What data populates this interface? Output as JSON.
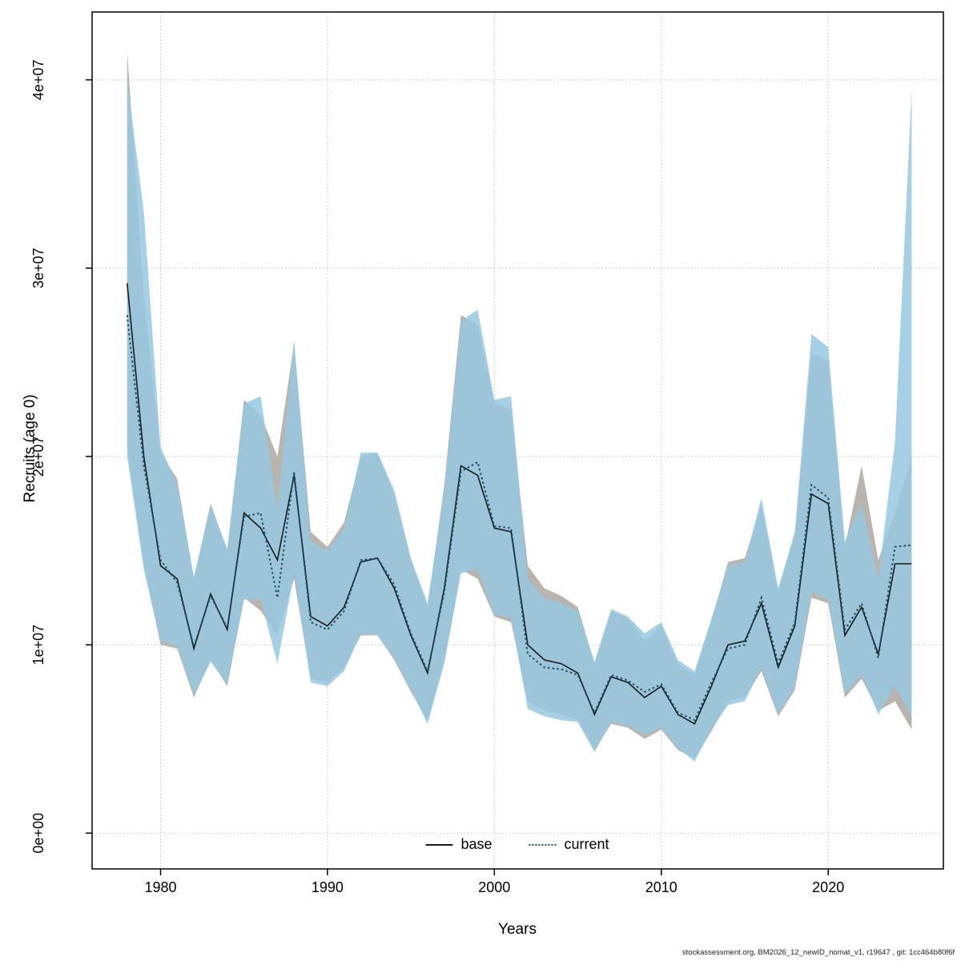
{
  "figure": {
    "y_label": "Recruits (age 0)",
    "x_label": "Years",
    "footer": "stockassessment.org, BM2026_12_newID_nomat_v1, r19647 , git: 1cc464b80f6f",
    "legend": {
      "base_label": "base",
      "current_label": "current"
    },
    "colors": {
      "base_line": "#1a1a1a",
      "current_line": "#16506e",
      "base_band": "#b9b4ad",
      "current_band": "#97c8e2",
      "grid": "#bdbdbd",
      "box": "#000000"
    }
  },
  "chart_data": {
    "type": "line",
    "title": "",
    "xlabel": "Years",
    "ylabel": "Recruits (age 0)",
    "grid": true,
    "legend_position": "bottom-center",
    "xlim": [
      1975.9,
      2026.9
    ],
    "ylim": [
      -1900000,
      43600000
    ],
    "x_ticks": [
      1980,
      1990,
      2000,
      2010,
      2020
    ],
    "x_tick_labels": [
      "1980",
      "1990",
      "2000",
      "2010",
      "2020"
    ],
    "y_ticks": [
      0,
      10000000,
      20000000,
      30000000,
      40000000
    ],
    "y_tick_labels": [
      "0e+00",
      "1e+07",
      "2e+07",
      "3e+07",
      "4e+07"
    ],
    "x": [
      1978,
      1979,
      1980,
      1981,
      1982,
      1983,
      1984,
      1985,
      1986,
      1987,
      1988,
      1989,
      1990,
      1991,
      1992,
      1993,
      1994,
      1995,
      1996,
      1997,
      1998,
      1999,
      2000,
      2001,
      2002,
      2003,
      2004,
      2005,
      2006,
      2007,
      2008,
      2009,
      2010,
      2011,
      2012,
      2013,
      2014,
      2015,
      2016,
      2017,
      2018,
      2019,
      2020,
      2021,
      2022,
      2023,
      2024,
      2025
    ],
    "series": [
      {
        "name": "base",
        "style": "solid",
        "color": "#1a1a1a",
        "band_color": "#b9b4ad",
        "band_opacity": 1.0,
        "mean": [
          29200000.0,
          20000000.0,
          14200000.0,
          13500000.0,
          9800000.0,
          12700000.0,
          10800000.0,
          17000000.0,
          16200000.0,
          14500000.0,
          19000000.0,
          11500000.0,
          11000000.0,
          12000000.0,
          14400000.0,
          14600000.0,
          13000000.0,
          10500000.0,
          8500000.0,
          13000000.0,
          19500000.0,
          19000000.0,
          16200000.0,
          16000000.0,
          10000000.0,
          9200000.0,
          9000000.0,
          8500000.0,
          6300000.0,
          8300000.0,
          8000000.0,
          7200000.0,
          7800000.0,
          6300000.0,
          5800000.0,
          7800000.0,
          10000000.0,
          10200000.0,
          12200000.0,
          8800000.0,
          11000000.0,
          18000000.0,
          17500000.0,
          10500000.0,
          12000000.0,
          9500000.0,
          14300000.0,
          14300000.0
        ],
        "lo": [
          20500000.0,
          14200000.0,
          10000000.0,
          9800000.0,
          7200000.0,
          9200000.0,
          7800000.0,
          12500000.0,
          11800000.0,
          10500000.0,
          13500000.0,
          8200000.0,
          8000000.0,
          8800000.0,
          10500000.0,
          10500000.0,
          9200000.0,
          7500000.0,
          6000000.0,
          9200000.0,
          14000000.0,
          13500000.0,
          11500000.0,
          11200000.0,
          7000000.0,
          6500000.0,
          6300000.0,
          6000000.0,
          4400000.0,
          5800000.0,
          5600000.0,
          5000000.0,
          5500000.0,
          4400000.0,
          4000000.0,
          5400000.0,
          7000000.0,
          7200000.0,
          8600000.0,
          6200000.0,
          7600000.0,
          12500000.0,
          12200000.0,
          7200000.0,
          8200000.0,
          6500000.0,
          7000000.0,
          5500000.0
        ],
        "hi": [
          41500000.0,
          28500000.0,
          20200000.0,
          18800000.0,
          13500000.0,
          17500000.0,
          15000000.0,
          23000000.0,
          22200000.0,
          20000000.0,
          26000000.0,
          16000000.0,
          15200000.0,
          16500000.0,
          20000000.0,
          20200000.0,
          18000000.0,
          14500000.0,
          12000000.0,
          18500000.0,
          27500000.0,
          27000000.0,
          22800000.0,
          22500000.0,
          14200000.0,
          13000000.0,
          12600000.0,
          12000000.0,
          9000000.0,
          11800000.0,
          11400000.0,
          10200000.0,
          11000000.0,
          9000000.0,
          8400000.0,
          11200000.0,
          14400000.0,
          14600000.0,
          17400000.0,
          12800000.0,
          15800000.0,
          25500000.0,
          25000000.0,
          15200000.0,
          19500000.0,
          14500000.0,
          17000000.0,
          20000000.0
        ]
      },
      {
        "name": "current",
        "style": "dotted",
        "color": "#16506e",
        "band_color": "#97c8e2",
        "band_opacity": 0.85,
        "mean": [
          27500000.0,
          19500000.0,
          14500000.0,
          13300000.0,
          9900000.0,
          12600000.0,
          10900000.0,
          16800000.0,
          17000000.0,
          12500000.0,
          19200000.0,
          11200000.0,
          10800000.0,
          11800000.0,
          14500000.0,
          14600000.0,
          13200000.0,
          10600000.0,
          8600000.0,
          12800000.0,
          19200000.0,
          19700000.0,
          16300000.0,
          16200000.0,
          9500000.0,
          8800000.0,
          8700000.0,
          8400000.0,
          6400000.0,
          8400000.0,
          8100000.0,
          7500000.0,
          7900000.0,
          6400000.0,
          6000000.0,
          8000000.0,
          9800000.0,
          10000000.0,
          12500000.0,
          9000000.0,
          11200000.0,
          18500000.0,
          17800000.0,
          10800000.0,
          12200000.0,
          9300000.0,
          15200000.0,
          15300000.0
        ],
        "lo": [
          20000000.0,
          14000000.0,
          10200000.0,
          9900000.0,
          7300000.0,
          9100000.0,
          7900000.0,
          12400000.0,
          12400000.0,
          9000000.0,
          13800000.0,
          8000000.0,
          7800000.0,
          8600000.0,
          10600000.0,
          10500000.0,
          9300000.0,
          7600000.0,
          5800000.0,
          9000000.0,
          13800000.0,
          14000000.0,
          11600000.0,
          11400000.0,
          6600000.0,
          6200000.0,
          6000000.0,
          5900000.0,
          4300000.0,
          5900000.0,
          5700000.0,
          5200000.0,
          5600000.0,
          4500000.0,
          3800000.0,
          5500000.0,
          6800000.0,
          7000000.0,
          8800000.0,
          6300000.0,
          7700000.0,
          12800000.0,
          12400000.0,
          7400000.0,
          8400000.0,
          6300000.0,
          7800000.0,
          6200000.0
        ],
        "hi": [
          40000000.0,
          33000000.0,
          20500000.0,
          18500000.0,
          13600000.0,
          17400000.0,
          15100000.0,
          22800000.0,
          23200000.0,
          17200000.0,
          26200000.0,
          15500000.0,
          15000000.0,
          16200000.0,
          20200000.0,
          20200000.0,
          18200000.0,
          14600000.0,
          12200000.0,
          18200000.0,
          27200000.0,
          27800000.0,
          23000000.0,
          23200000.0,
          13500000.0,
          12500000.0,
          12200000.0,
          11800000.0,
          9100000.0,
          11900000.0,
          11500000.0,
          10600000.0,
          11200000.0,
          9200000.0,
          8600000.0,
          11400000.0,
          14200000.0,
          14400000.0,
          17800000.0,
          13000000.0,
          16000000.0,
          26500000.0,
          25800000.0,
          15500000.0,
          17500000.0,
          13500000.0,
          20800000.0,
          39500000.0
        ]
      }
    ]
  }
}
